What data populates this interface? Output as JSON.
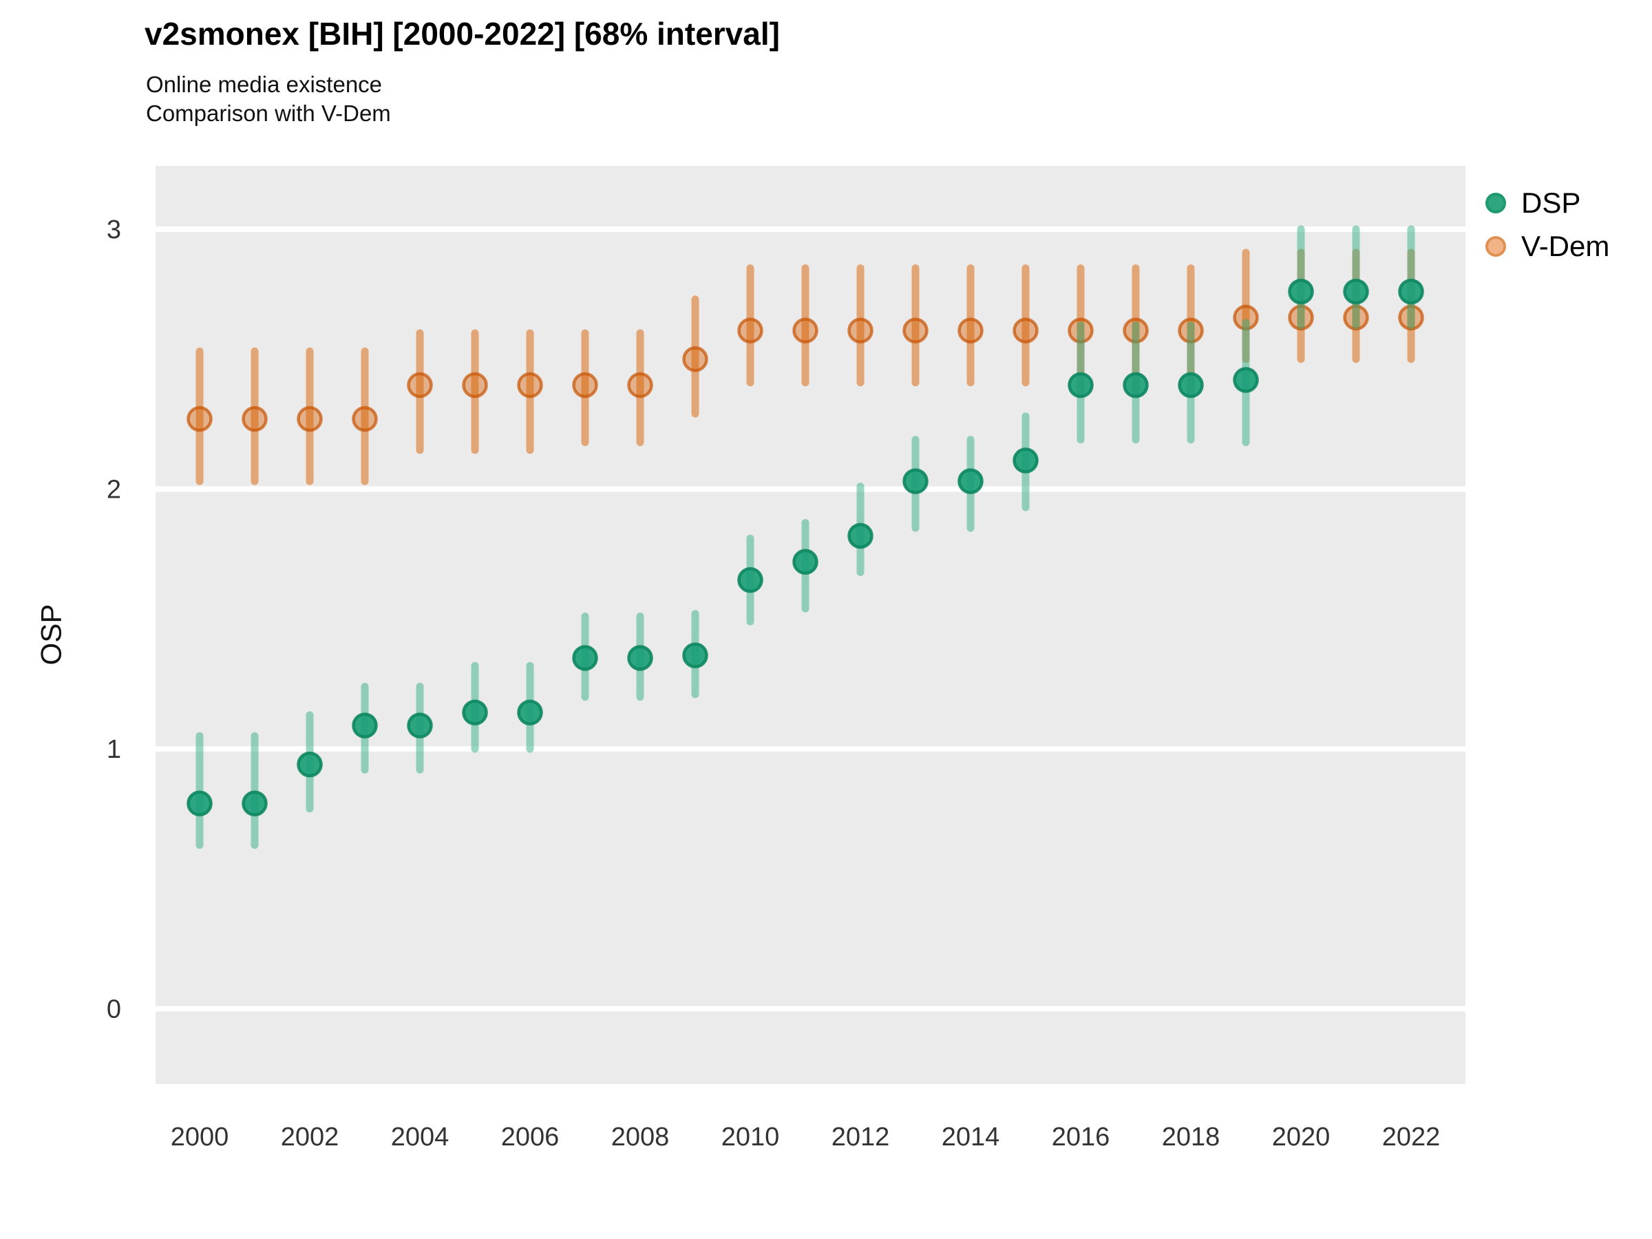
{
  "header": {
    "title": "v2smonex [BIH] [2000-2022] [68% interval]",
    "subtitle_line1": "Online media existence",
    "subtitle_line2": "Comparison with V-Dem"
  },
  "legend": {
    "items": [
      {
        "label": "DSP",
        "color": "#2ea67f"
      },
      {
        "label": "V-Dem",
        "color": "#f2b486"
      }
    ]
  },
  "chart_data": {
    "type": "scatter",
    "title": "v2smonex [BIH] [2000-2022] [68% interval]",
    "subtitle": [
      "Online media existence",
      "Comparison with V-Dem"
    ],
    "xlabel": "",
    "ylabel": "OSP",
    "interval_label": "68% interval",
    "grid": "horizontal-major-only",
    "legend_position": "right-top",
    "x": [
      2000,
      2001,
      2002,
      2003,
      2004,
      2005,
      2006,
      2007,
      2008,
      2009,
      2010,
      2011,
      2012,
      2013,
      2014,
      2015,
      2016,
      2017,
      2018,
      2019,
      2020,
      2021,
      2022
    ],
    "x_tick_labels": [
      2000,
      2002,
      2004,
      2006,
      2008,
      2010,
      2012,
      2014,
      2016,
      2018,
      2020,
      2022
    ],
    "y_ticks": [
      0,
      1,
      2,
      3
    ],
    "ylim": [
      -0.29,
      3.25
    ],
    "series": [
      {
        "name": "V-Dem",
        "role": "pointrange",
        "values": [
          2.27,
          2.27,
          2.27,
          2.27,
          2.4,
          2.4,
          2.4,
          2.4,
          2.4,
          2.5,
          2.61,
          2.61,
          2.61,
          2.61,
          2.61,
          2.61,
          2.61,
          2.61,
          2.61,
          2.66,
          2.66,
          2.66,
          2.66
        ],
        "lower": [
          2.03,
          2.03,
          2.03,
          2.03,
          2.15,
          2.15,
          2.15,
          2.18,
          2.18,
          2.29,
          2.41,
          2.41,
          2.41,
          2.41,
          2.41,
          2.41,
          2.37,
          2.37,
          2.37,
          2.5,
          2.5,
          2.5,
          2.5
        ],
        "upper": [
          2.53,
          2.53,
          2.53,
          2.53,
          2.6,
          2.6,
          2.6,
          2.6,
          2.6,
          2.73,
          2.85,
          2.85,
          2.85,
          2.85,
          2.85,
          2.85,
          2.85,
          2.85,
          2.85,
          2.91,
          2.91,
          2.91,
          2.91
        ],
        "point_fill": "rgba(217,95,2,0.42)",
        "point_stroke": "rgba(200,85,5,0.72)",
        "bar_color": "rgba(217,95,2,0.5)"
      },
      {
        "name": "DSP",
        "role": "pointrange",
        "values": [
          0.79,
          0.79,
          0.94,
          1.09,
          1.09,
          1.14,
          1.14,
          1.35,
          1.35,
          1.36,
          1.65,
          1.72,
          1.82,
          2.03,
          2.03,
          2.11,
          2.4,
          2.4,
          2.4,
          2.42,
          2.76,
          2.76,
          2.76
        ],
        "lower": [
          0.63,
          0.63,
          0.77,
          0.92,
          0.92,
          1.0,
          1.0,
          1.2,
          1.2,
          1.21,
          1.49,
          1.54,
          1.68,
          1.85,
          1.85,
          1.93,
          2.19,
          2.19,
          2.19,
          2.18,
          2.63,
          2.63,
          2.63
        ],
        "upper": [
          1.05,
          1.05,
          1.13,
          1.24,
          1.24,
          1.32,
          1.32,
          1.51,
          1.51,
          1.52,
          1.81,
          1.87,
          2.01,
          2.19,
          2.19,
          2.28,
          2.63,
          2.63,
          2.63,
          2.64,
          3.0,
          3.0,
          3.0
        ],
        "point_fill": "rgba(27,158,119,0.92)",
        "point_stroke": "rgba(13,135,97,0.9)",
        "bar_color": "rgba(51,175,135,0.5)"
      }
    ],
    "panel_background": "#ebebeb",
    "gridline_color": "#ffffff",
    "tick_label_color": "#333333"
  }
}
